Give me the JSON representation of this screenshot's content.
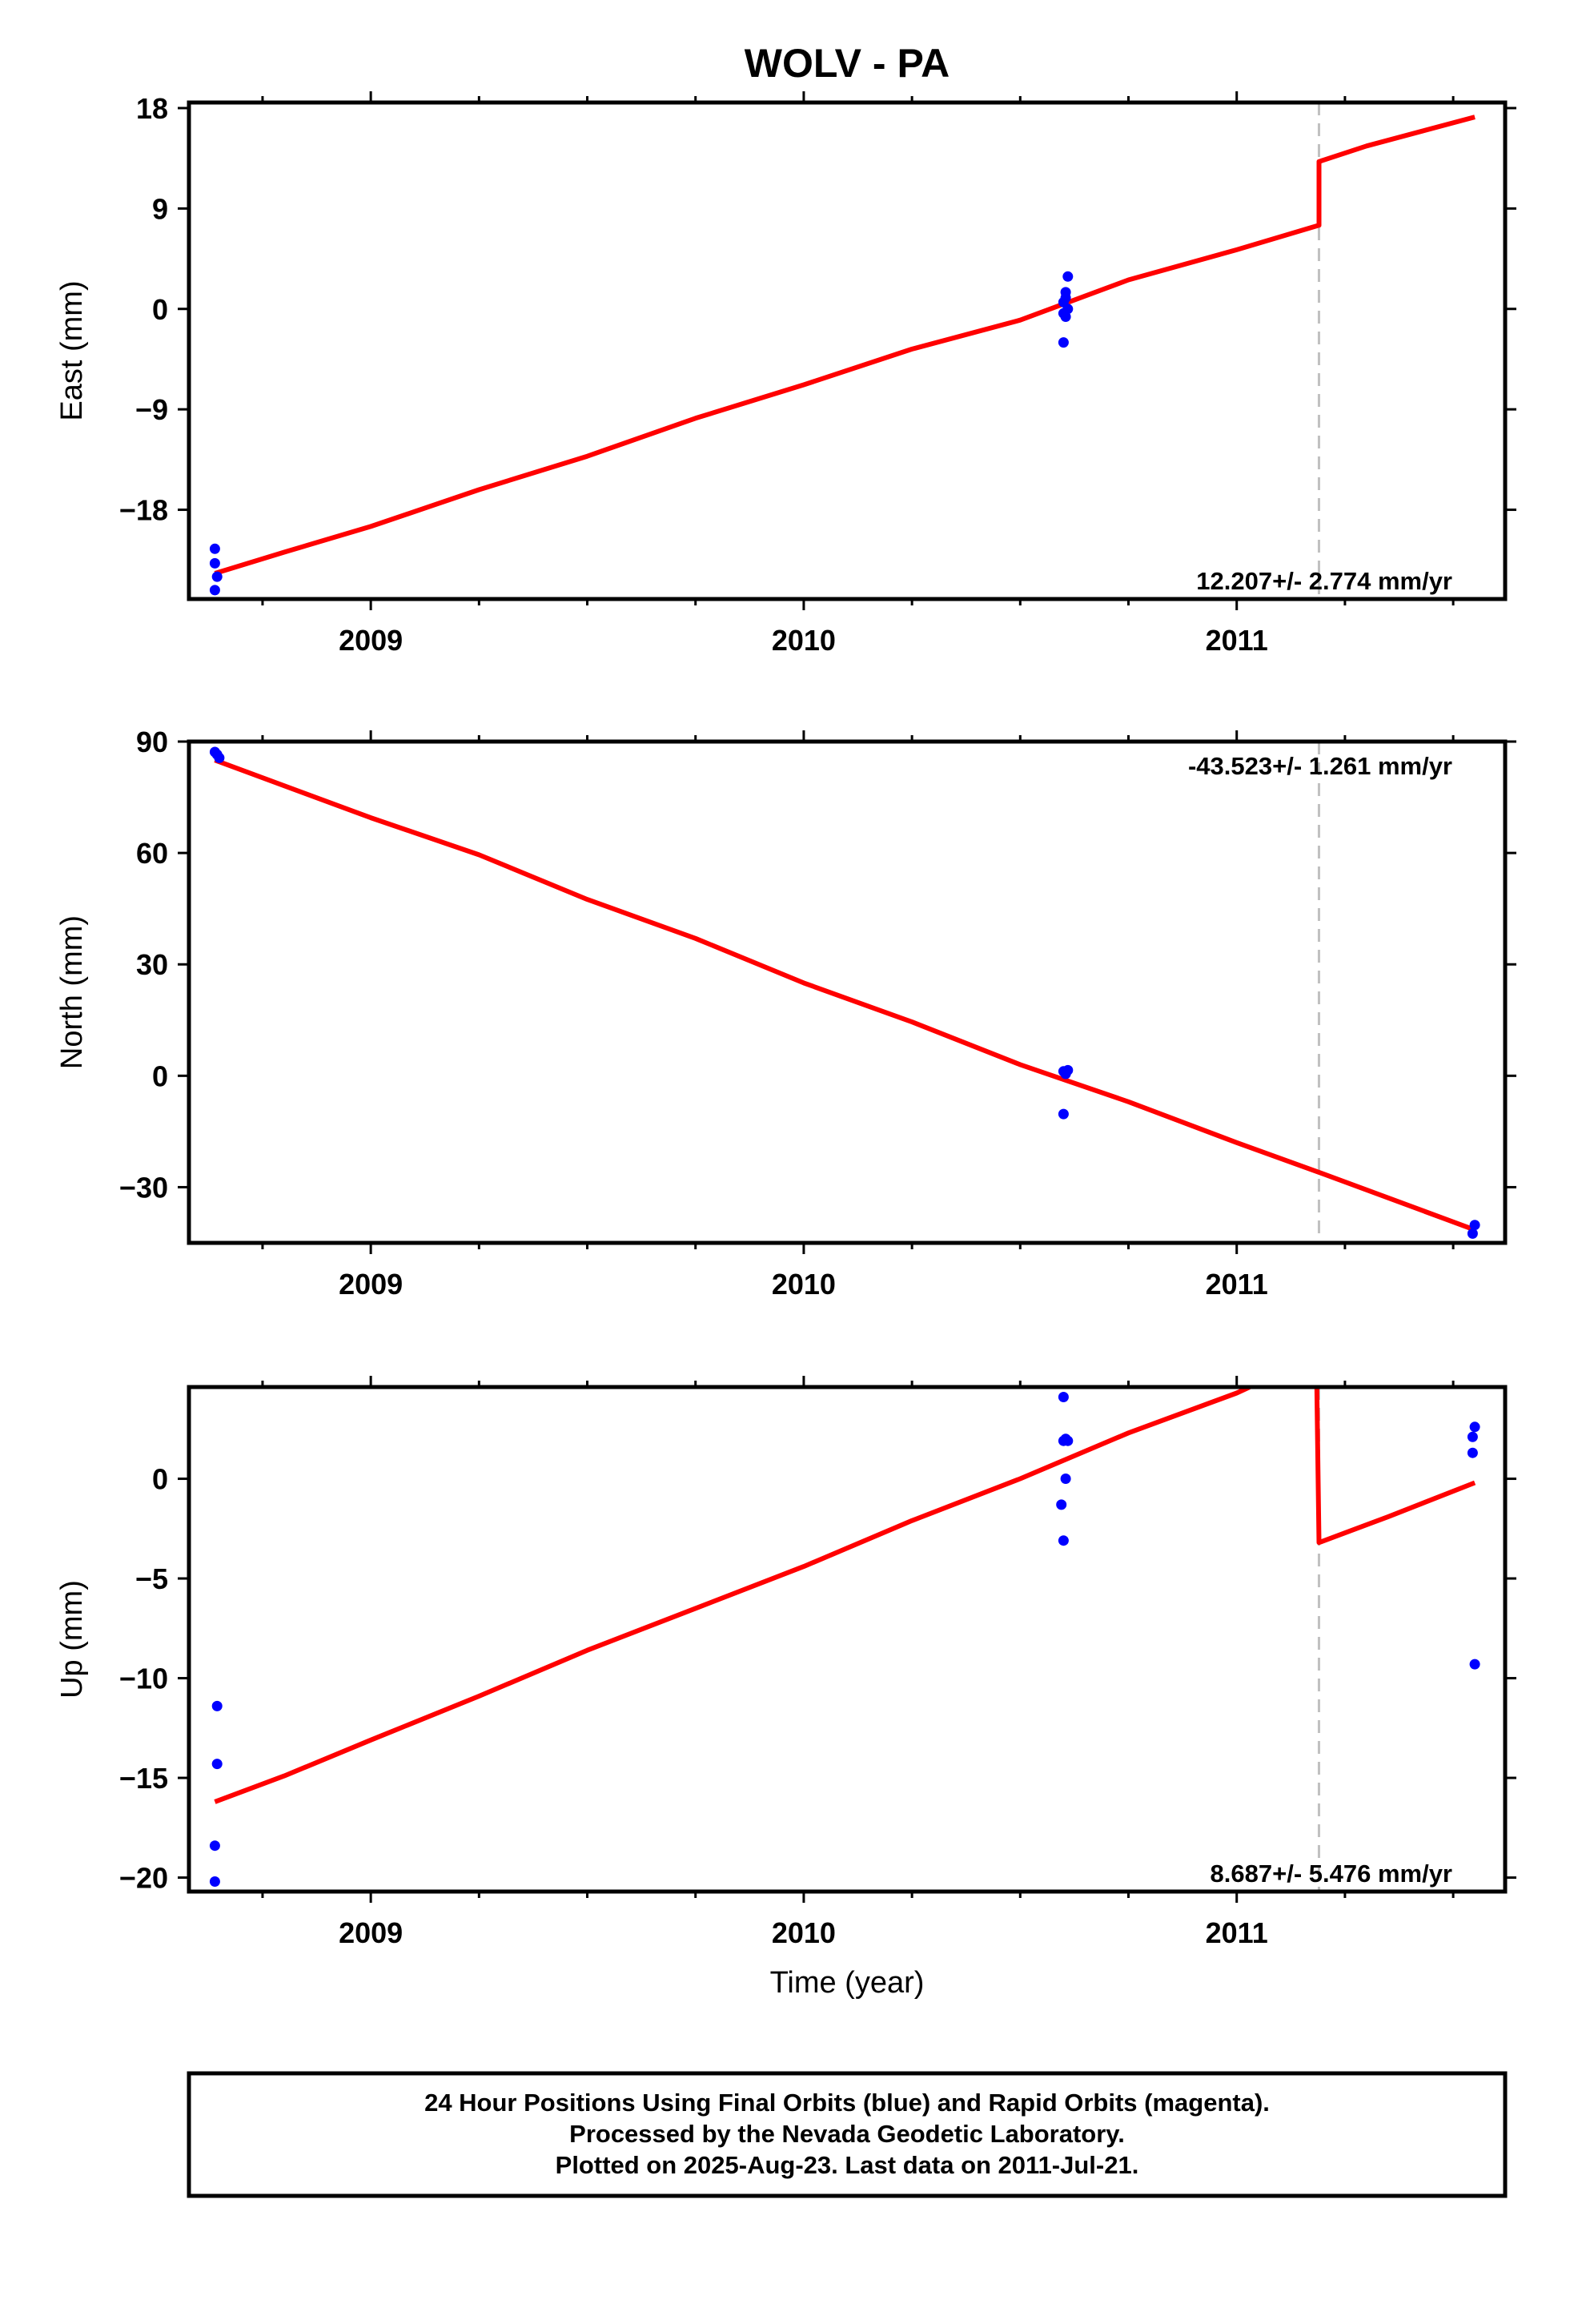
{
  "title": "WOLV - PA",
  "xlabel": "Time (year)",
  "footer": {
    "line1": "24 Hour Positions Using Final Orbits (blue) and Rapid Orbits (magenta).",
    "line2": "Processed by the Nevada Geodetic Laboratory.",
    "line3": "Plotted on 2025-Aug-23. Last data on 2011-Jul-21."
  },
  "colors": {
    "data_points": "#0000ff",
    "model_line": "#ff0000",
    "event_line": "#c0c0c0",
    "frame": "#000000"
  },
  "chart_data": [
    {
      "type": "scatter",
      "ylabel": "East (mm)",
      "rate_text": "12.207+/- 2.774 mm/yr",
      "rate_position": "bottom-right",
      "xlim": [
        2008.58,
        2011.62
      ],
      "ylim": [
        -26,
        18.5
      ],
      "yticks": [
        {
          "v": 18,
          "label": "18"
        },
        {
          "v": 9,
          "label": "9"
        },
        {
          "v": 0,
          "label": "0"
        },
        {
          "v": -9,
          "label": "−9"
        },
        {
          "v": -18,
          "label": "−18"
        }
      ],
      "xticks": [
        {
          "v": 2009,
          "label": "2009"
        },
        {
          "v": 2010,
          "label": "2010"
        },
        {
          "v": 2011,
          "label": "2011"
        }
      ],
      "event_x": 2011.19,
      "points": [
        [
          2008.64,
          -21.5
        ],
        [
          2008.64,
          -22.8
        ],
        [
          2008.645,
          -24.0
        ],
        [
          2008.64,
          -25.2
        ],
        [
          2010.6,
          0.6
        ],
        [
          2010.6,
          -0.4
        ],
        [
          2010.605,
          1.0
        ],
        [
          2010.605,
          1.5
        ],
        [
          2010.61,
          2.9
        ],
        [
          2010.61,
          0.0
        ],
        [
          2010.605,
          -0.7
        ],
        [
          2010.6,
          -3.0
        ]
      ],
      "model": [
        [
          2008.64,
          -23.7
        ],
        [
          2008.8,
          -21.8
        ],
        [
          2009.0,
          -19.5
        ],
        [
          2009.25,
          -16.2
        ],
        [
          2009.5,
          -13.2
        ],
        [
          2009.75,
          -9.8
        ],
        [
          2010.0,
          -6.8
        ],
        [
          2010.25,
          -3.6
        ],
        [
          2010.5,
          -1.0
        ],
        [
          2010.75,
          2.6
        ],
        [
          2011.0,
          5.3
        ],
        [
          2011.19,
          7.5
        ],
        [
          2011.19,
          13.2
        ],
        [
          2011.3,
          14.6
        ],
        [
          2011.55,
          17.2
        ]
      ]
    },
    {
      "type": "scatter",
      "ylabel": "North (mm)",
      "rate_text": "-43.523+/- 1.261 mm/yr",
      "rate_position": "top-right",
      "xlim": [
        2008.58,
        2011.62
      ],
      "ylim": [
        -45,
        90
      ],
      "yticks": [
        {
          "v": 90,
          "label": "90"
        },
        {
          "v": 60,
          "label": "60"
        },
        {
          "v": 30,
          "label": "30"
        },
        {
          "v": 0,
          "label": "0"
        },
        {
          "v": -30,
          "label": "−30"
        }
      ],
      "xticks": [
        {
          "v": 2009,
          "label": "2009"
        },
        {
          "v": 2010,
          "label": "2010"
        },
        {
          "v": 2011,
          "label": "2011"
        }
      ],
      "event_x": 2011.19,
      "points": [
        [
          2008.64,
          87.2
        ],
        [
          2008.645,
          86.5
        ],
        [
          2008.65,
          85.6
        ],
        [
          2010.6,
          1.2
        ],
        [
          2010.605,
          0.5
        ],
        [
          2010.61,
          1.5
        ],
        [
          2010.6,
          -10.3
        ],
        [
          2011.55,
          -40.2
        ],
        [
          2011.545,
          -42.5
        ]
      ],
      "model": [
        [
          2008.64,
          85.0
        ],
        [
          2009.0,
          69.5
        ],
        [
          2009.25,
          59.5
        ],
        [
          2009.5,
          47.5
        ],
        [
          2009.75,
          37.0
        ],
        [
          2010.0,
          25.0
        ],
        [
          2010.25,
          14.5
        ],
        [
          2010.5,
          3.0
        ],
        [
          2010.75,
          -7.0
        ],
        [
          2011.0,
          -18.0
        ],
        [
          2011.19,
          -26.0
        ],
        [
          2011.55,
          -41.5
        ]
      ]
    },
    {
      "type": "scatter",
      "ylabel": "Up (mm)",
      "rate_text": "8.687+/- 5.476 mm/yr",
      "rate_position": "bottom-right",
      "xlim": [
        2008.58,
        2011.62
      ],
      "ylim": [
        -20.7,
        4.6
      ],
      "yticks": [
        {
          "v": 0,
          "label": "0"
        },
        {
          "v": -5,
          "label": "−5"
        },
        {
          "v": -10,
          "label": "−10"
        },
        {
          "v": -15,
          "label": "−15"
        },
        {
          "v": -20,
          "label": "−20"
        }
      ],
      "xticks": [
        {
          "v": 2009,
          "label": "2009"
        },
        {
          "v": 2010,
          "label": "2010"
        },
        {
          "v": 2011,
          "label": "2011"
        }
      ],
      "event_x": 2011.19,
      "points": [
        [
          2008.645,
          -11.4
        ],
        [
          2008.645,
          -14.3
        ],
        [
          2008.64,
          -18.4
        ],
        [
          2008.64,
          -20.2
        ],
        [
          2010.6,
          4.1
        ],
        [
          2010.6,
          1.9
        ],
        [
          2010.605,
          2.0
        ],
        [
          2010.61,
          1.9
        ],
        [
          2010.605,
          0.0
        ],
        [
          2010.595,
          -1.3
        ],
        [
          2010.6,
          -3.1
        ],
        [
          2011.55,
          2.6
        ],
        [
          2011.545,
          2.1
        ],
        [
          2011.545,
          1.3
        ],
        [
          2011.55,
          -9.3
        ]
      ],
      "model": [
        [
          2008.64,
          -16.2
        ],
        [
          2008.8,
          -14.9
        ],
        [
          2009.0,
          -13.1
        ],
        [
          2009.25,
          -10.9
        ],
        [
          2009.5,
          -8.6
        ],
        [
          2009.75,
          -6.5
        ],
        [
          2010.0,
          -4.4
        ],
        [
          2010.25,
          -2.1
        ],
        [
          2010.5,
          0.0
        ],
        [
          2010.75,
          2.3
        ],
        [
          2011.0,
          4.3
        ],
        [
          2011.03,
          4.6
        ]
      ],
      "model_post": [
        [
          2011.185,
          4.6
        ],
        [
          2011.19,
          -3.2
        ],
        [
          2011.35,
          -1.9
        ],
        [
          2011.55,
          -0.2
        ]
      ]
    }
  ]
}
